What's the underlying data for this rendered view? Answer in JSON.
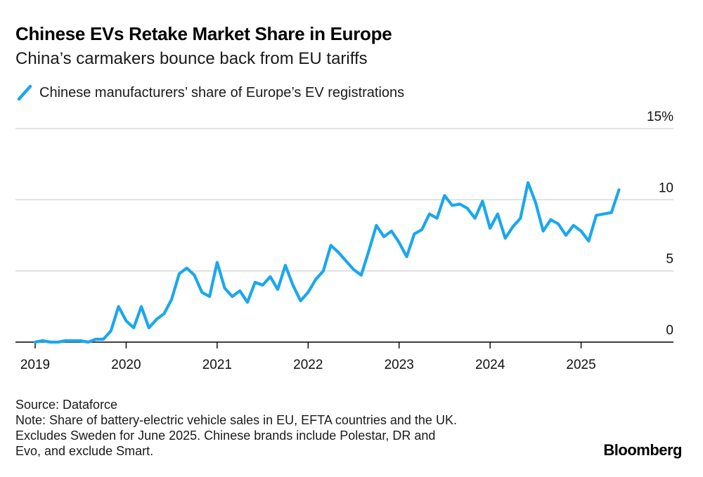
{
  "header": {
    "title": "Chinese EVs Retake Market Share in Europe",
    "subtitle": "China’s carmakers bounce back from EU tariffs"
  },
  "legend": {
    "label": "Chinese manufacturers’ share of Europe’s EV registrations"
  },
  "chart_data": {
    "type": "line",
    "title": "Chinese EVs Retake Market Share in Europe",
    "subtitle": "China’s carmakers bounce back from EU tariffs",
    "xlabel": "",
    "ylabel": "",
    "ylim": [
      0,
      15
    ],
    "y_ticks": [
      0,
      5,
      10,
      15
    ],
    "y_tick_labels": [
      "0",
      "5",
      "10",
      "15%"
    ],
    "x_ticks": [
      2019,
      2020,
      2021,
      2022,
      2023,
      2024,
      2025
    ],
    "x_tick_labels": [
      "2019",
      "2020",
      "2021",
      "2022",
      "2023",
      "2024",
      "2025"
    ],
    "grid": true,
    "legend_position": "top-left",
    "colors": {
      "line": "#1aa7ee",
      "grid": "#d9d9d9",
      "axis": "#000000"
    },
    "series": [
      {
        "name": "Chinese manufacturers’ share of Europe’s EV registrations",
        "x": [
          "2019-01",
          "2019-02",
          "2019-03",
          "2019-04",
          "2019-05",
          "2019-06",
          "2019-07",
          "2019-08",
          "2019-09",
          "2019-10",
          "2019-11",
          "2019-12",
          "2020-01",
          "2020-02",
          "2020-03",
          "2020-04",
          "2020-05",
          "2020-06",
          "2020-07",
          "2020-08",
          "2020-09",
          "2020-10",
          "2020-11",
          "2020-12",
          "2021-01",
          "2021-02",
          "2021-03",
          "2021-04",
          "2021-05",
          "2021-06",
          "2021-07",
          "2021-08",
          "2021-09",
          "2021-10",
          "2021-11",
          "2021-12",
          "2022-01",
          "2022-02",
          "2022-03",
          "2022-04",
          "2022-05",
          "2022-06",
          "2022-07",
          "2022-08",
          "2022-09",
          "2022-10",
          "2022-11",
          "2022-12",
          "2023-01",
          "2023-02",
          "2023-03",
          "2023-04",
          "2023-05",
          "2023-06",
          "2023-07",
          "2023-08",
          "2023-09",
          "2023-10",
          "2023-11",
          "2023-12",
          "2024-01",
          "2024-02",
          "2024-03",
          "2024-04",
          "2024-05",
          "2024-06",
          "2024-07",
          "2024-08",
          "2024-09",
          "2024-10",
          "2024-11",
          "2024-12",
          "2025-01",
          "2025-02",
          "2025-03",
          "2025-04",
          "2025-05",
          "2025-06"
        ],
        "values": [
          0.0,
          0.1,
          0.0,
          0.0,
          0.1,
          0.1,
          0.1,
          0.0,
          0.2,
          0.2,
          0.8,
          2.5,
          1.5,
          1.0,
          2.5,
          1.0,
          1.6,
          2.0,
          3.0,
          4.8,
          5.2,
          4.7,
          3.5,
          3.2,
          5.6,
          3.8,
          3.2,
          3.6,
          2.8,
          4.2,
          4.0,
          4.6,
          3.7,
          5.4,
          4.0,
          2.9,
          3.5,
          4.4,
          5.0,
          6.8,
          6.3,
          5.7,
          5.1,
          4.7,
          6.4,
          8.2,
          7.4,
          7.8,
          7.0,
          6.0,
          7.6,
          7.9,
          9.0,
          8.7,
          10.3,
          9.6,
          9.7,
          9.4,
          8.7,
          9.9,
          8.0,
          9.0,
          7.3,
          8.1,
          8.7,
          11.2,
          9.8,
          7.8,
          8.6,
          8.3,
          7.5,
          8.2,
          7.8,
          7.1,
          8.9,
          9.0,
          9.1,
          10.7
        ]
      }
    ]
  },
  "footer": {
    "source": "Source: Dataforce",
    "note_lines": [
      "Note: Share of battery-electric vehicle sales in EU, EFTA countries and the UK.",
      "Excludes Sweden for June 2025. Chinese brands include Polestar, DR and",
      "Evo, and exclude Smart."
    ]
  },
  "branding": {
    "logo_text": "Bloomberg"
  }
}
